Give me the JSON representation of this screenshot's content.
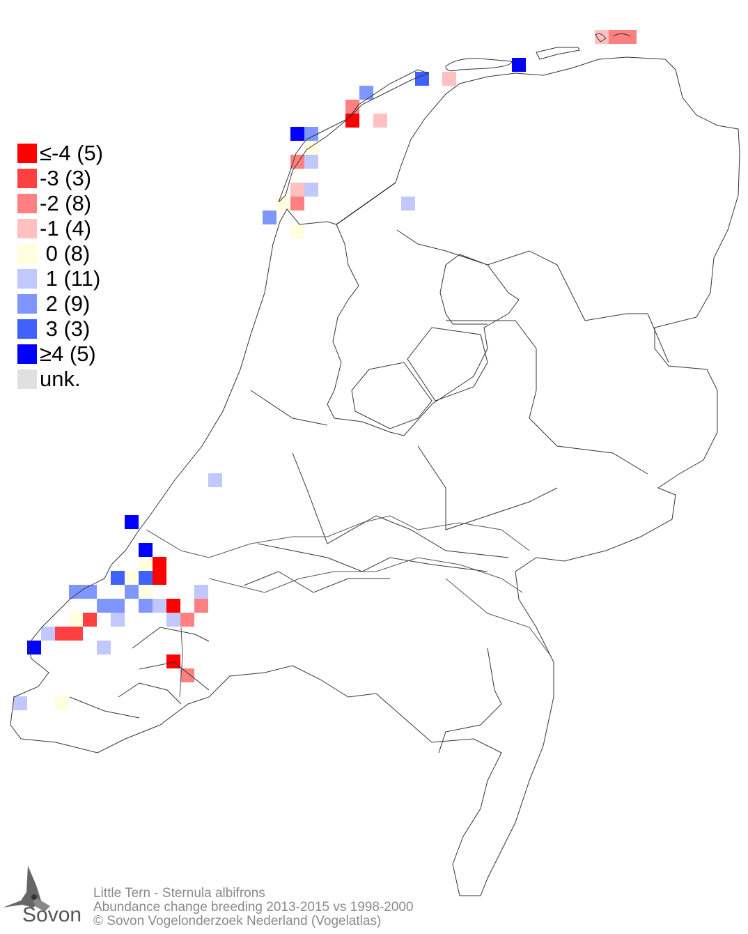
{
  "legend": {
    "items": [
      {
        "label": "≤-4 (5)",
        "color": "#ff0000"
      },
      {
        "label": "-3 (3)",
        "color": "#ff4040"
      },
      {
        "label": "-2 (8)",
        "color": "#ff8080"
      },
      {
        "label": "-1 (4)",
        "color": "#ffc0c0"
      },
      {
        "label": " 0 (8)",
        "color": "#ffffe0"
      },
      {
        "label": " 1 (11)",
        "color": "#c0c8ff"
      },
      {
        "label": " 2 (9)",
        "color": "#8096ff"
      },
      {
        "label": " 3 (3)",
        "color": "#4060ff"
      },
      {
        "label": "≥4 (5)",
        "color": "#0000ff"
      },
      {
        "label": "unk.",
        "color": "#e0e0e0"
      }
    ]
  },
  "footer": {
    "species": "Little Tern - Sternula albifrons",
    "subtitle": "Abundance change breeding  2013-2015 vs 1998-2000",
    "copyright": "© Sovon Vogelonderzoek Nederland (Vogelatlas)"
  },
  "logo": {
    "text": "Sovon"
  }
}
